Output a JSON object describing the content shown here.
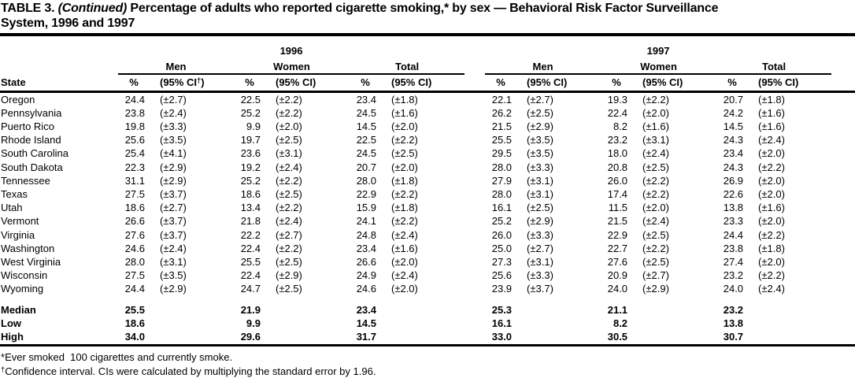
{
  "title": {
    "prefix": "TABLE 3.",
    "continued": "(Continued)",
    "line1_rest": "Percentage of adults who reported cigarette smoking,* by sex — Behavioral Risk Factor Surveillance",
    "line2": "System, 1996 and 1997"
  },
  "header": {
    "state": "State",
    "years": [
      "1996",
      "1997"
    ],
    "sexes": [
      "Men",
      "Women",
      "Total"
    ],
    "pct": "%",
    "ci": "(95% CI)",
    "ci_first_base": "(95% CI",
    "ci_first_sup": "†",
    "ci_first_close": ")"
  },
  "rows": [
    {
      "state": "Oregon",
      "values": [
        "24.4",
        "(±2.7)",
        "22.5",
        "(±2.2)",
        "23.4",
        "(±1.8)",
        "22.1",
        "(±2.7)",
        "19.3",
        "(±2.2)",
        "20.7",
        "(±1.8)"
      ]
    },
    {
      "state": "Pennsylvania",
      "values": [
        "23.8",
        "(±2.4)",
        "25.2",
        "(±2.2)",
        "24.5",
        "(±1.6)",
        "26.2",
        "(±2.5)",
        "22.4",
        "(±2.0)",
        "24.2",
        "(±1.6)"
      ]
    },
    {
      "state": "Puerto Rico",
      "values": [
        "19.8",
        "(±3.3)",
        "9.9",
        "(±2.0)",
        "14.5",
        "(±2.0)",
        "21.5",
        "(±2.9)",
        "8.2",
        "(±1.6)",
        "14.5",
        "(±1.6)"
      ]
    },
    {
      "state": "Rhode Island",
      "values": [
        "25.6",
        "(±3.5)",
        "19.7",
        "(±2.5)",
        "22.5",
        "(±2.2)",
        "25.5",
        "(±3.5)",
        "23.2",
        "(±3.1)",
        "24.3",
        "(±2.4)"
      ]
    },
    {
      "state": "South Carolina",
      "values": [
        "25.4",
        "(±4.1)",
        "23.6",
        "(±3.1)",
        "24.5",
        "(±2.5)",
        "29.5",
        "(±3.5)",
        "18.0",
        "(±2.4)",
        "23.4",
        "(±2.0)"
      ]
    },
    {
      "state": "South Dakota",
      "values": [
        "22.3",
        "(±2.9)",
        "19.2",
        "(±2.4)",
        "20.7",
        "(±2.0)",
        "28.0",
        "(±3.3)",
        "20.8",
        "(±2.5)",
        "24.3",
        "(±2.2)"
      ]
    },
    {
      "state": "Tennessee",
      "values": [
        "31.1",
        "(±2.9)",
        "25.2",
        "(±2.2)",
        "28.0",
        "(±1.8)",
        "27.9",
        "(±3.1)",
        "26.0",
        "(±2.2)",
        "26.9",
        "(±2.0)"
      ]
    },
    {
      "state": "Texas",
      "values": [
        "27.5",
        "(±3.7)",
        "18.6",
        "(±2.5)",
        "22.9",
        "(±2.2)",
        "28.0",
        "(±3.1)",
        "17.4",
        "(±2.2)",
        "22.6",
        "(±2.0)"
      ]
    },
    {
      "state": "Utah",
      "values": [
        "18.6",
        "(±2.7)",
        "13.4",
        "(±2.2)",
        "15.9",
        "(±1.8)",
        "16.1",
        "(±2.5)",
        "11.5",
        "(±2.0)",
        "13.8",
        "(±1.6)"
      ]
    },
    {
      "state": "Vermont",
      "values": [
        "26.6",
        "(±3.7)",
        "21.8",
        "(±2.4)",
        "24.1",
        "(±2.2)",
        "25.2",
        "(±2.9)",
        "21.5",
        "(±2.4)",
        "23.3",
        "(±2.0)"
      ]
    },
    {
      "state": "Virginia",
      "values": [
        "27.6",
        "(±3.7)",
        "22.2",
        "(±2.7)",
        "24.8",
        "(±2.4)",
        "26.0",
        "(±3.3)",
        "22.9",
        "(±2.5)",
        "24.4",
        "(±2.2)"
      ]
    },
    {
      "state": "Washington",
      "values": [
        "24.6",
        "(±2.4)",
        "22.4",
        "(±2.2)",
        "23.4",
        "(±1.6)",
        "25.0",
        "(±2.7)",
        "22.7",
        "(±2.2)",
        "23.8",
        "(±1.8)"
      ]
    },
    {
      "state": "West Virginia",
      "values": [
        "28.0",
        "(±3.1)",
        "25.5",
        "(±2.5)",
        "26.6",
        "(±2.0)",
        "27.3",
        "(±3.1)",
        "27.6",
        "(±2.5)",
        "27.4",
        "(±2.0)"
      ]
    },
    {
      "state": "Wisconsin",
      "values": [
        "27.5",
        "(±3.5)",
        "22.4",
        "(±2.9)",
        "24.9",
        "(±2.4)",
        "25.6",
        "(±3.3)",
        "20.9",
        "(±2.7)",
        "23.2",
        "(±2.2)"
      ]
    },
    {
      "state": "Wyoming",
      "values": [
        "24.4",
        "(±2.9)",
        "24.7",
        "(±2.5)",
        "24.6",
        "(±2.0)",
        "23.9",
        "(±3.7)",
        "24.0",
        "(±2.9)",
        "24.0",
        "(±2.4)"
      ]
    }
  ],
  "summary": [
    {
      "label": "Median",
      "values": [
        "25.5",
        "21.9",
        "23.4",
        "25.3",
        "21.1",
        "23.2"
      ]
    },
    {
      "label": "Low",
      "values": [
        "18.6",
        "9.9",
        "14.5",
        "16.1",
        "8.2",
        "13.8"
      ]
    },
    {
      "label": "High",
      "values": [
        "34.0",
        "29.6",
        "31.7",
        "33.0",
        "30.5",
        "30.7"
      ]
    }
  ],
  "footnotes": [
    {
      "marker": "*",
      "text": "Ever smoked  100 cigarettes and currently smoke."
    },
    {
      "marker": "†",
      "text": "Confidence interval. CIs were calculated by multiplying the standard error by 1.96."
    }
  ]
}
